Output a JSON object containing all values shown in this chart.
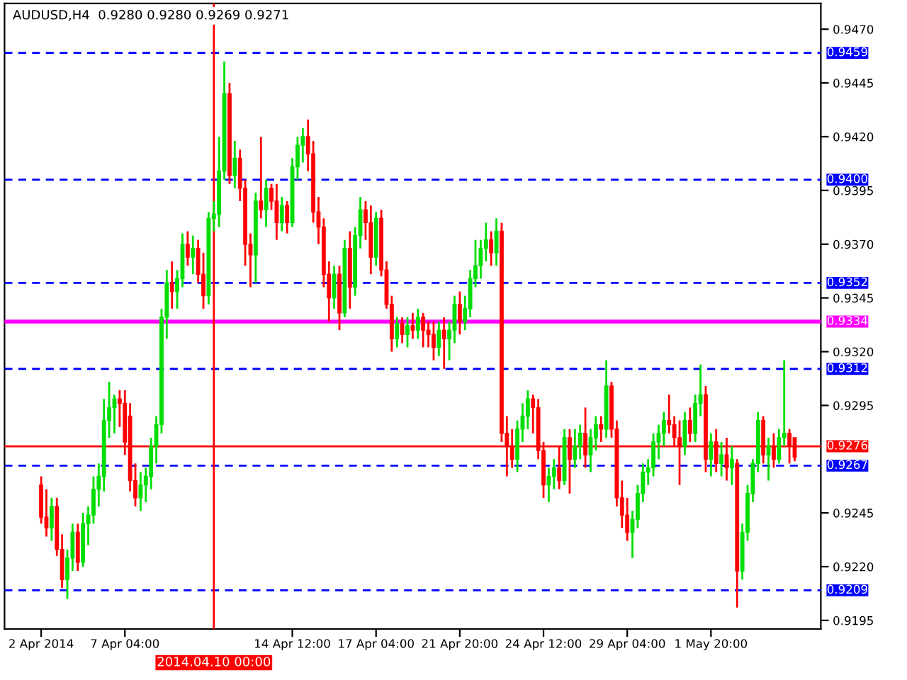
{
  "chart_data": {
    "type": "candlestick",
    "title": "AUDUSD,H4  0.9280 0.9280 0.9269 0.9271",
    "categories": [
      "2 Apr 2014",
      null,
      null,
      null,
      null,
      null,
      null,
      null,
      null,
      null,
      null,
      null,
      null,
      null,
      null,
      null,
      "7 Apr 04:00",
      null,
      null,
      null,
      null,
      null,
      null,
      null,
      null,
      null,
      null,
      null,
      null,
      null,
      null,
      null,
      null,
      "2014.04.10 00:00",
      null,
      null,
      null,
      null,
      null,
      null,
      null,
      null,
      null,
      null,
      null,
      null,
      null,
      null,
      "14 Apr 12:00",
      null,
      null,
      null,
      null,
      null,
      null,
      null,
      null,
      null,
      null,
      null,
      null,
      null,
      null,
      null,
      "17 Apr 04:00",
      null,
      null,
      null,
      null,
      null,
      null,
      null,
      null,
      null,
      null,
      null,
      null,
      null,
      null,
      null,
      "21 Apr 20:00",
      null,
      null,
      null,
      null,
      null,
      null,
      null,
      null,
      null,
      null,
      null,
      null,
      null,
      null,
      null,
      "24 Apr 12:00",
      null,
      null,
      null,
      null,
      null,
      null,
      null,
      null,
      null,
      null,
      null,
      null,
      null,
      null,
      null,
      "29 Apr 04:00",
      null,
      null,
      null,
      null,
      null,
      null,
      null,
      null,
      null,
      null,
      null,
      null,
      null,
      null,
      null,
      "1 May 20:00",
      null,
      null,
      null,
      null,
      null,
      null,
      null,
      null,
      null,
      null,
      null,
      null,
      null,
      null,
      null,
      null
    ],
    "ohlc": [
      [
        0.9258,
        0.9262,
        0.924,
        0.9243
      ],
      [
        0.9243,
        0.9256,
        0.9234,
        0.9238
      ],
      [
        0.9238,
        0.9252,
        0.9232,
        0.9248
      ],
      [
        0.9248,
        0.9252,
        0.9225,
        0.9228
      ],
      [
        0.9228,
        0.9235,
        0.921,
        0.9214
      ],
      [
        0.9214,
        0.9228,
        0.9205,
        0.9224
      ],
      [
        0.9224,
        0.924,
        0.9218,
        0.9236
      ],
      [
        0.9236,
        0.924,
        0.9218,
        0.9222
      ],
      [
        0.9222,
        0.9245,
        0.922,
        0.924
      ],
      [
        0.924,
        0.9248,
        0.923,
        0.9244
      ],
      [
        0.9244,
        0.9262,
        0.924,
        0.9256
      ],
      [
        0.9256,
        0.9268,
        0.9248,
        0.9262
      ],
      [
        0.9262,
        0.9298,
        0.9255,
        0.9288
      ],
      [
        0.9288,
        0.9306,
        0.928,
        0.9294
      ],
      [
        0.9294,
        0.93,
        0.9282,
        0.9298
      ],
      [
        0.9298,
        0.9302,
        0.9285,
        0.9296
      ],
      [
        0.9296,
        0.9302,
        0.9272,
        0.9278
      ],
      [
        0.929,
        0.9296,
        0.9255,
        0.926
      ],
      [
        0.926,
        0.9268,
        0.9248,
        0.9252
      ],
      [
        0.9252,
        0.9264,
        0.9246,
        0.9258
      ],
      [
        0.9258,
        0.9266,
        0.925,
        0.9262
      ],
      [
        0.9262,
        0.928,
        0.9256,
        0.9276
      ],
      [
        0.9276,
        0.929,
        0.9268,
        0.9286
      ],
      [
        0.9286,
        0.934,
        0.9282,
        0.9336
      ],
      [
        0.9336,
        0.9358,
        0.9326,
        0.9352
      ],
      [
        0.9352,
        0.9362,
        0.934,
        0.9348
      ],
      [
        0.9348,
        0.9358,
        0.934,
        0.9354
      ],
      [
        0.9354,
        0.9375,
        0.935,
        0.937
      ],
      [
        0.937,
        0.9376,
        0.936,
        0.9364
      ],
      [
        0.9364,
        0.9374,
        0.9356,
        0.9368
      ],
      [
        0.9368,
        0.9372,
        0.9352,
        0.9356
      ],
      [
        0.9356,
        0.9366,
        0.934,
        0.9346
      ],
      [
        0.9346,
        0.9385,
        0.9342,
        0.9382
      ],
      [
        0.9382,
        0.939,
        0.9376,
        0.9384
      ],
      [
        0.9384,
        0.942,
        0.9378,
        0.9404
      ],
      [
        0.9404,
        0.9455,
        0.94,
        0.944
      ],
      [
        0.944,
        0.9445,
        0.9398,
        0.9402
      ],
      [
        0.9402,
        0.9418,
        0.9396,
        0.941
      ],
      [
        0.941,
        0.9414,
        0.939,
        0.9396
      ],
      [
        0.9396,
        0.94,
        0.936,
        0.937
      ],
      [
        0.937,
        0.9375,
        0.935,
        0.9365
      ],
      [
        0.9365,
        0.9394,
        0.9352,
        0.939
      ],
      [
        0.939,
        0.942,
        0.9382,
        0.9386
      ],
      [
        0.9386,
        0.94,
        0.9378,
        0.9396
      ],
      [
        0.9396,
        0.9398,
        0.9386,
        0.939
      ],
      [
        0.939,
        0.9398,
        0.9372,
        0.938
      ],
      [
        0.938,
        0.9392,
        0.9376,
        0.9388
      ],
      [
        0.9388,
        0.939,
        0.9375,
        0.938
      ],
      [
        0.938,
        0.941,
        0.9378,
        0.9406
      ],
      [
        0.9406,
        0.942,
        0.94,
        0.9416
      ],
      [
        0.9416,
        0.9424,
        0.9408,
        0.942
      ],
      [
        0.942,
        0.9428,
        0.9404,
        0.9412
      ],
      [
        0.9412,
        0.9418,
        0.938,
        0.9385
      ],
      [
        0.9385,
        0.9392,
        0.937,
        0.9378
      ],
      [
        0.9378,
        0.9382,
        0.935,
        0.9356
      ],
      [
        0.9356,
        0.9362,
        0.9334,
        0.9345
      ],
      [
        0.9345,
        0.936,
        0.934,
        0.9356
      ],
      [
        0.9356,
        0.936,
        0.933,
        0.9338
      ],
      [
        0.9338,
        0.9372,
        0.9336,
        0.9368
      ],
      [
        0.9368,
        0.9376,
        0.934,
        0.935
      ],
      [
        0.935,
        0.9378,
        0.9346,
        0.9374
      ],
      [
        0.9374,
        0.9392,
        0.9368,
        0.9386
      ],
      [
        0.9386,
        0.939,
        0.9372,
        0.938
      ],
      [
        0.938,
        0.9388,
        0.9356,
        0.9364
      ],
      [
        0.9364,
        0.9385,
        0.936,
        0.9382
      ],
      [
        0.9382,
        0.9386,
        0.9355,
        0.9358
      ],
      [
        0.9358,
        0.9362,
        0.934,
        0.9342
      ],
      [
        0.9342,
        0.9346,
        0.932,
        0.9326
      ],
      [
        0.9326,
        0.9336,
        0.9322,
        0.9333
      ],
      [
        0.9333,
        0.9336,
        0.9324,
        0.9328
      ],
      [
        0.9328,
        0.9336,
        0.9322,
        0.9332
      ],
      [
        0.9332,
        0.9338,
        0.9326,
        0.933
      ],
      [
        0.933,
        0.934,
        0.9326,
        0.9336
      ],
      [
        0.9336,
        0.9338,
        0.9322,
        0.933
      ],
      [
        0.933,
        0.9334,
        0.9322,
        0.9328
      ],
      [
        0.9328,
        0.9334,
        0.9316,
        0.9322
      ],
      [
        0.9322,
        0.9334,
        0.9318,
        0.933
      ],
      [
        0.933,
        0.9336,
        0.9312,
        0.9326
      ],
      [
        0.9326,
        0.9334,
        0.9316,
        0.933
      ],
      [
        0.933,
        0.9346,
        0.9324,
        0.9342
      ],
      [
        0.9342,
        0.9348,
        0.9328,
        0.9334
      ],
      [
        0.9334,
        0.9346,
        0.933,
        0.934
      ],
      [
        0.934,
        0.9358,
        0.9336,
        0.9354
      ],
      [
        0.9354,
        0.9372,
        0.935,
        0.936
      ],
      [
        0.936,
        0.9372,
        0.9354,
        0.9368
      ],
      [
        0.9368,
        0.938,
        0.9362,
        0.9372
      ],
      [
        0.9372,
        0.9376,
        0.936,
        0.9366
      ],
      [
        0.9366,
        0.9382,
        0.936,
        0.9376
      ],
      [
        0.9376,
        0.938,
        0.9278,
        0.9282
      ],
      [
        0.9282,
        0.929,
        0.9262,
        0.9276
      ],
      [
        0.9276,
        0.9284,
        0.9266,
        0.927
      ],
      [
        0.927,
        0.9288,
        0.9264,
        0.9284
      ],
      [
        0.9284,
        0.9296,
        0.9278,
        0.929
      ],
      [
        0.929,
        0.9302,
        0.9284,
        0.9298
      ],
      [
        0.9298,
        0.93,
        0.9282,
        0.9294
      ],
      [
        0.9294,
        0.9298,
        0.927,
        0.9274
      ],
      [
        0.9274,
        0.9278,
        0.9252,
        0.9258
      ],
      [
        0.9258,
        0.9266,
        0.925,
        0.9262
      ],
      [
        0.9262,
        0.927,
        0.9256,
        0.9266
      ],
      [
        0.9266,
        0.9276,
        0.9256,
        0.926
      ],
      [
        0.926,
        0.9284,
        0.9258,
        0.928
      ],
      [
        0.928,
        0.9284,
        0.9254,
        0.927
      ],
      [
        0.927,
        0.9284,
        0.9266,
        0.9276
      ],
      [
        0.9276,
        0.9286,
        0.927,
        0.9282
      ],
      [
        0.9282,
        0.9294,
        0.9266,
        0.9272
      ],
      [
        0.9272,
        0.9284,
        0.9264,
        0.928
      ],
      [
        0.928,
        0.929,
        0.9274,
        0.9286
      ],
      [
        0.9286,
        0.929,
        0.9278,
        0.9284
      ],
      [
        0.9284,
        0.9316,
        0.928,
        0.9304
      ],
      [
        0.9304,
        0.9306,
        0.928,
        0.9284
      ],
      [
        0.9284,
        0.9288,
        0.9248,
        0.9252
      ],
      [
        0.9252,
        0.926,
        0.9238,
        0.9244
      ],
      [
        0.9244,
        0.9252,
        0.9232,
        0.9236
      ],
      [
        0.9236,
        0.9246,
        0.9224,
        0.9242
      ],
      [
        0.9242,
        0.9258,
        0.9238,
        0.9254
      ],
      [
        0.9254,
        0.9268,
        0.925,
        0.9264
      ],
      [
        0.9264,
        0.927,
        0.9258,
        0.9266
      ],
      [
        0.9266,
        0.9282,
        0.9262,
        0.9278
      ],
      [
        0.9278,
        0.9286,
        0.927,
        0.9282
      ],
      [
        0.9282,
        0.9292,
        0.9276,
        0.9288
      ],
      [
        0.9288,
        0.93,
        0.9282,
        0.9286
      ],
      [
        0.9286,
        0.929,
        0.9276,
        0.928
      ],
      [
        0.928,
        0.9288,
        0.9258,
        0.9276
      ],
      [
        0.9276,
        0.9292,
        0.9272,
        0.9288
      ],
      [
        0.9288,
        0.9294,
        0.9278,
        0.9282
      ],
      [
        0.9282,
        0.93,
        0.9278,
        0.9296
      ],
      [
        0.9296,
        0.9314,
        0.929,
        0.93
      ],
      [
        0.93,
        0.9304,
        0.9264,
        0.927
      ],
      [
        0.927,
        0.9282,
        0.9262,
        0.9278
      ],
      [
        0.9278,
        0.9284,
        0.9264,
        0.9268
      ],
      [
        0.9268,
        0.9278,
        0.9262,
        0.9272
      ],
      [
        0.9272,
        0.928,
        0.926,
        0.9266
      ],
      [
        0.9266,
        0.9276,
        0.9258,
        0.927
      ],
      [
        0.9268,
        0.927,
        0.9201,
        0.9218
      ],
      [
        0.9218,
        0.924,
        0.9214,
        0.9236
      ],
      [
        0.9236,
        0.9258,
        0.9232,
        0.9254
      ],
      [
        0.9254,
        0.927,
        0.925,
        0.9268
      ],
      [
        0.9268,
        0.9292,
        0.9264,
        0.9288
      ],
      [
        0.9288,
        0.929,
        0.9268,
        0.9272
      ],
      [
        0.9272,
        0.928,
        0.926,
        0.9276
      ],
      [
        0.9276,
        0.9282,
        0.9266,
        0.927
      ],
      [
        0.927,
        0.9284,
        0.9268,
        0.928
      ],
      [
        0.928,
        0.9316,
        0.9276,
        0.9282
      ],
      [
        0.9282,
        0.9284,
        0.9268,
        0.9276
      ],
      [
        0.928,
        0.928,
        0.9269,
        0.9271
      ]
    ],
    "ylim": [
      0.9191,
      0.9482
    ],
    "yticks": [
      {
        "value": 0.947,
        "label": "0.9470"
      },
      {
        "value": 0.9445,
        "label": "0.9445"
      },
      {
        "value": 0.942,
        "label": "0.9420"
      },
      {
        "value": 0.9395,
        "label": "0.9395"
      },
      {
        "value": 0.937,
        "label": "0.9370"
      },
      {
        "value": 0.9345,
        "label": "0.9345"
      },
      {
        "value": 0.932,
        "label": "0.9320"
      },
      {
        "value": 0.9295,
        "label": "0.9295"
      },
      {
        "value": 0.9245,
        "label": "0.9245"
      },
      {
        "value": 0.922,
        "label": "0.9220"
      },
      {
        "value": 0.9195,
        "label": "0.9195"
      }
    ],
    "ref_lines": [
      {
        "axis": "y",
        "value": 0.9459,
        "label": "0.9459",
        "color": "#0000ff",
        "line_style": "dashed"
      },
      {
        "axis": "y",
        "value": 0.94,
        "label": "0.9400",
        "color": "#0000ff",
        "line_style": "dashed"
      },
      {
        "axis": "y",
        "value": 0.9352,
        "label": "0.9352",
        "color": "#0000ff",
        "line_style": "dashed"
      },
      {
        "axis": "y",
        "value": 0.9334,
        "label": "0.9334",
        "color": "#ff00ff",
        "line_style": "solid"
      },
      {
        "axis": "y",
        "value": 0.9312,
        "label": "0.9312",
        "color": "#0000ff",
        "line_style": "dashed"
      },
      {
        "axis": "y",
        "value": 0.9276,
        "label": "0.9276",
        "color": "#ff0000",
        "line_style": "solid"
      },
      {
        "axis": "y",
        "value": 0.9267,
        "label": "0.9267",
        "color": "#0000ff",
        "line_style": "dashed"
      },
      {
        "axis": "y",
        "value": 0.9209,
        "label": "0.9209",
        "color": "#0000ff",
        "line_style": "dashed"
      },
      {
        "axis": "x",
        "value": "2014.04.10 00:00",
        "color": "#ff0000",
        "line_style": "solid"
      }
    ],
    "grid": false,
    "legend": false
  }
}
